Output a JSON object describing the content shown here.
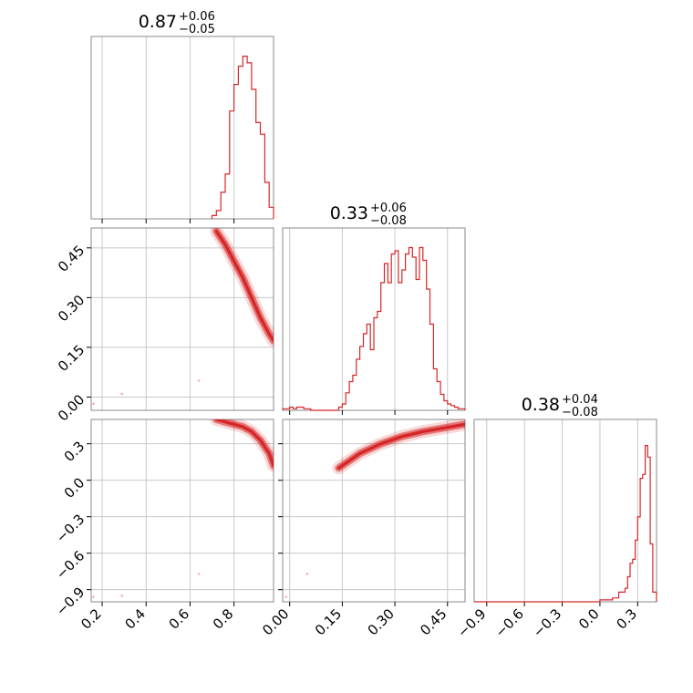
{
  "chart_data": {
    "type": "corner",
    "color": "#d62728",
    "grid": true,
    "panels": [
      {
        "type": "histogram",
        "title": {
          "median": "0.87",
          "plus": "+0.06",
          "minus": "−0.05"
        },
        "xlim": [
          0.15,
          0.98
        ],
        "bins": [
          0.7,
          0.72,
          0.74,
          0.76,
          0.78,
          0.8,
          0.82,
          0.84,
          0.86,
          0.88,
          0.9,
          0.92,
          0.94,
          0.96,
          0.98
        ],
        "counts": [
          2,
          5,
          16,
          27,
          65,
          81,
          92,
          98,
          94,
          78,
          58,
          51,
          22,
          7
        ],
        "ymax": 100
      },
      {
        "type": "histogram",
        "title": {
          "median": "0.33",
          "plus": "+0.06",
          "minus": "−0.08"
        },
        "xlim": [
          -0.02,
          0.5
        ],
        "bins": [
          -0.02,
          0.0,
          0.01,
          0.02,
          0.04,
          0.06,
          0.14,
          0.15,
          0.16,
          0.17,
          0.18,
          0.19,
          0.2,
          0.21,
          0.22,
          0.23,
          0.24,
          0.25,
          0.26,
          0.27,
          0.28,
          0.29,
          0.3,
          0.31,
          0.32,
          0.33,
          0.34,
          0.35,
          0.36,
          0.37,
          0.38,
          0.39,
          0.4,
          0.41,
          0.42,
          0.43,
          0.44,
          0.45,
          0.46,
          0.47,
          0.48,
          0.5
        ],
        "counts": [
          1,
          2,
          1,
          2,
          1,
          0,
          2,
          4,
          11,
          18,
          22,
          32,
          40,
          48,
          54,
          38,
          58,
          62,
          80,
          92,
          80,
          98,
          100,
          80,
          88,
          98,
          102,
          96,
          82,
          102,
          94,
          76,
          54,
          26,
          18,
          10,
          6,
          4,
          3,
          2,
          1
        ],
        "ymax": 104
      },
      {
        "type": "histogram",
        "title": {
          "median": "0.38",
          "plus": "+0.04",
          "minus": "−0.08"
        },
        "xlim": [
          -1.0,
          0.45
        ],
        "bins": [
          -1.0,
          0.0,
          0.1,
          0.15,
          0.2,
          0.22,
          0.24,
          0.26,
          0.28,
          0.3,
          0.32,
          0.34,
          0.36,
          0.38,
          0.4,
          0.42,
          0.45
        ],
        "counts": [
          0,
          1,
          2,
          5,
          7,
          13,
          20,
          22,
          32,
          44,
          64,
          66,
          81,
          75,
          30,
          5
        ],
        "ymax": 86
      },
      {
        "type": "ridge",
        "col": 0,
        "row": 1,
        "xlim": [
          0.15,
          0.98
        ],
        "ylim": [
          -0.04,
          0.51
        ],
        "center": [
          [
            0.72,
            0.5
          ],
          [
            0.76,
            0.46
          ],
          [
            0.8,
            0.41
          ],
          [
            0.84,
            0.36
          ],
          [
            0.88,
            0.3
          ],
          [
            0.92,
            0.24
          ],
          [
            0.96,
            0.19
          ],
          [
            0.98,
            0.17
          ]
        ],
        "outliers": [
          [
            0.16,
            -0.02
          ],
          [
            0.29,
            0.01
          ],
          [
            0.64,
            0.05
          ]
        ]
      },
      {
        "type": "ridge",
        "col": 0,
        "row": 2,
        "xlim": [
          0.15,
          0.98
        ],
        "ylim": [
          -1.0,
          0.5
        ],
        "center": [
          [
            0.72,
            0.5
          ],
          [
            0.78,
            0.47
          ],
          [
            0.84,
            0.44
          ],
          [
            0.88,
            0.4
          ],
          [
            0.92,
            0.33
          ],
          [
            0.96,
            0.22
          ],
          [
            0.98,
            0.12
          ]
        ],
        "outliers": [
          [
            0.16,
            -0.96
          ],
          [
            0.29,
            -0.95
          ],
          [
            0.64,
            -0.77
          ]
        ]
      },
      {
        "type": "ridge",
        "col": 1,
        "row": 2,
        "xlim": [
          -0.02,
          0.5
        ],
        "ylim": [
          -1.0,
          0.5
        ],
        "center": [
          [
            0.14,
            0.1
          ],
          [
            0.2,
            0.22
          ],
          [
            0.26,
            0.3
          ],
          [
            0.32,
            0.36
          ],
          [
            0.38,
            0.4
          ],
          [
            0.44,
            0.43
          ],
          [
            0.5,
            0.46
          ]
        ],
        "outliers": [
          [
            0.05,
            -0.77
          ],
          [
            -0.01,
            -0.96
          ]
        ]
      }
    ],
    "axes": {
      "col0_ticks": [
        "0.2",
        "0.4",
        "0.6",
        "0.8"
      ],
      "col0_vals": [
        0.2,
        0.4,
        0.6,
        0.8
      ],
      "col1_ticks": [
        "0.00",
        "0.15",
        "0.30",
        "0.45"
      ],
      "col1_vals": [
        0.0,
        0.15,
        0.3,
        0.45
      ],
      "col2_ticks": [
        "−0.9",
        "−0.6",
        "−0.3",
        "0.0",
        "0.3"
      ],
      "col2_vals": [
        -0.9,
        -0.6,
        -0.3,
        0.0,
        0.3
      ],
      "row1_ticks": [
        "0.00",
        "0.15",
        "0.30",
        "0.45"
      ],
      "row1_vals": [
        0.0,
        0.15,
        0.3,
        0.45
      ],
      "row2_ticks": [
        "0.3",
        "0.0",
        "−0.3",
        "−0.6",
        "−0.9"
      ],
      "row2_vals": [
        0.3,
        0.0,
        -0.3,
        -0.6,
        -0.9
      ]
    }
  }
}
